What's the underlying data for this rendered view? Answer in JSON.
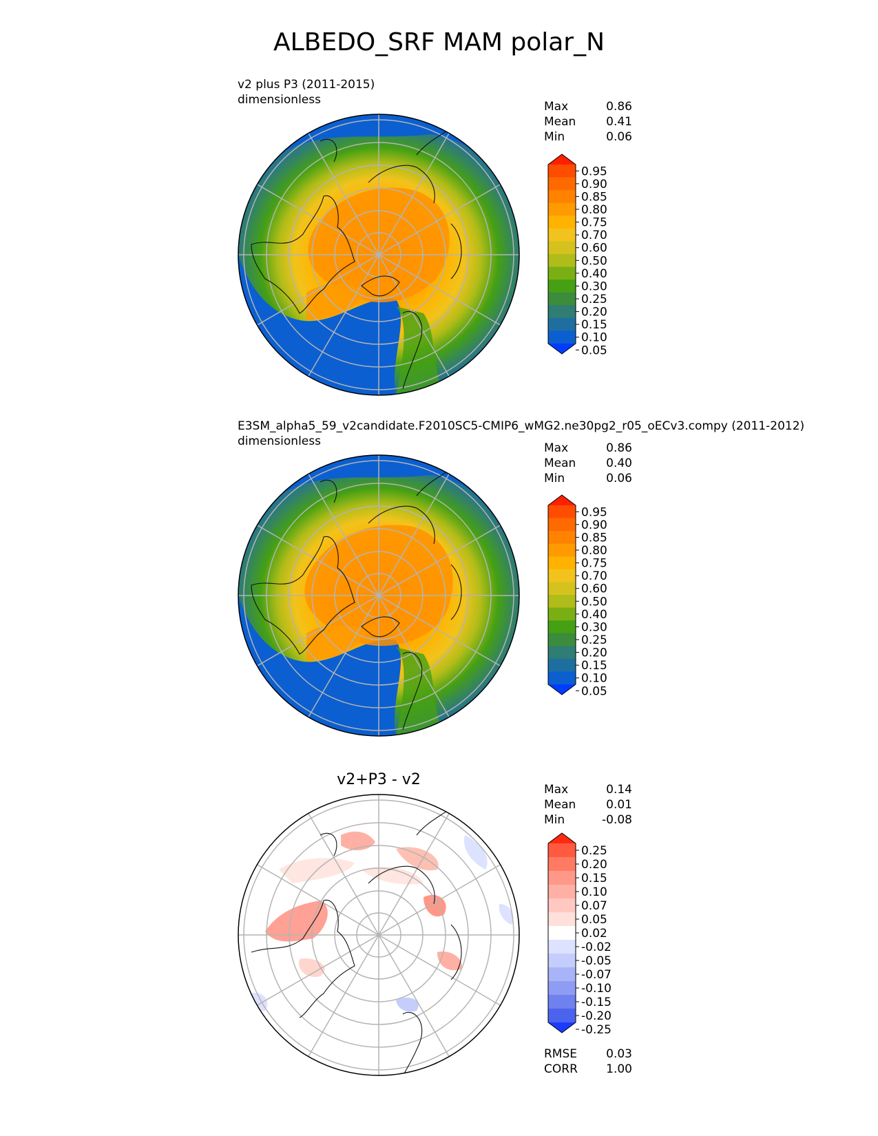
{
  "title": "ALBEDO_SRF MAM polar_N",
  "panels": [
    {
      "title_line1": "v2 plus P3 (2011-2015)",
      "title_line2": "dimensionless",
      "stats": [
        {
          "label": "Max",
          "value": "0.86"
        },
        {
          "label": "Mean",
          "value": "0.41"
        },
        {
          "label": "Min",
          "value": "0.06"
        }
      ],
      "colorbar": {
        "levels": [
          "0.95",
          "0.90",
          "0.85",
          "0.80",
          "0.75",
          "0.70",
          "0.60",
          "0.50",
          "0.40",
          "0.30",
          "0.25",
          "0.20",
          "0.15",
          "0.10",
          "0.05"
        ],
        "colors": [
          "#ff2000",
          "#ff4d00",
          "#ff6a00",
          "#ff8200",
          "#ff9a00",
          "#ffb300",
          "#f2c31c",
          "#d6c21e",
          "#b0bc19",
          "#7aaf14",
          "#45a014",
          "#3c8c3c",
          "#2f7d73",
          "#1e6fa0",
          "#0b5fd0",
          "#003cff"
        ]
      }
    },
    {
      "title_line1": "E3SM_alpha5_59_v2candidate.F2010SC5-CMIP6_wMG2.ne30pg2_r05_oECv3.compy (2011-2012)",
      "title_line2": "dimensionless",
      "stats": [
        {
          "label": "Max",
          "value": "0.86"
        },
        {
          "label": "Mean",
          "value": "0.40"
        },
        {
          "label": "Min",
          "value": "0.06"
        }
      ],
      "colorbar": {
        "levels": [
          "0.95",
          "0.90",
          "0.85",
          "0.80",
          "0.75",
          "0.70",
          "0.60",
          "0.50",
          "0.40",
          "0.30",
          "0.25",
          "0.20",
          "0.15",
          "0.10",
          "0.05"
        ],
        "colors": [
          "#ff2000",
          "#ff4d00",
          "#ff6a00",
          "#ff8200",
          "#ff9a00",
          "#ffb300",
          "#f2c31c",
          "#d6c21e",
          "#b0bc19",
          "#7aaf14",
          "#45a014",
          "#3c8c3c",
          "#2f7d73",
          "#1e6fa0",
          "#0b5fd0",
          "#003cff"
        ]
      }
    },
    {
      "title": "v2+P3 - v2",
      "stats": [
        {
          "label": "Max",
          "value": "0.14"
        },
        {
          "label": "Mean",
          "value": "0.01"
        },
        {
          "label": "Min",
          "value": "-0.08"
        }
      ],
      "colorbar": {
        "levels": [
          "0.25",
          "0.20",
          "0.15",
          "0.10",
          "0.07",
          "0.05",
          "0.02",
          "-0.02",
          "-0.05",
          "-0.07",
          "-0.10",
          "-0.15",
          "-0.20",
          "-0.25"
        ],
        "colors": [
          "#ff2a10",
          "#ff5a40",
          "#ff7a62",
          "#ff9888",
          "#ffb0a4",
          "#ffc8c0",
          "#ffe0da",
          "#ffffff",
          "#dce2ff",
          "#c4cdfb",
          "#a8b4f7",
          "#8e9cf3",
          "#6f80ef",
          "#4c63ee",
          "#1a3cff"
        ]
      },
      "extra_stats": [
        {
          "label": "RMSE",
          "value": "0.03"
        },
        {
          "label": "CORR",
          "value": "1.00"
        }
      ]
    }
  ],
  "chart_data": {
    "type": "heatmap",
    "title": "ALBEDO_SRF MAM polar_N",
    "projection": "north polar stereographic",
    "units": "dimensionless",
    "maps": [
      {
        "name": "v2 plus P3 (2011-2015)",
        "max": 0.86,
        "mean": 0.41,
        "min": 0.06
      },
      {
        "name": "E3SM_alpha5_59_v2candidate.F2010SC5-CMIP6_wMG2.ne30pg2_r05_oECv3.compy (2011-2012)",
        "max": 0.86,
        "mean": 0.4,
        "min": 0.06
      },
      {
        "name": "v2+P3 - v2",
        "max": 0.14,
        "mean": 0.01,
        "min": -0.08,
        "rmse": 0.03,
        "corr": 1.0
      }
    ]
  }
}
